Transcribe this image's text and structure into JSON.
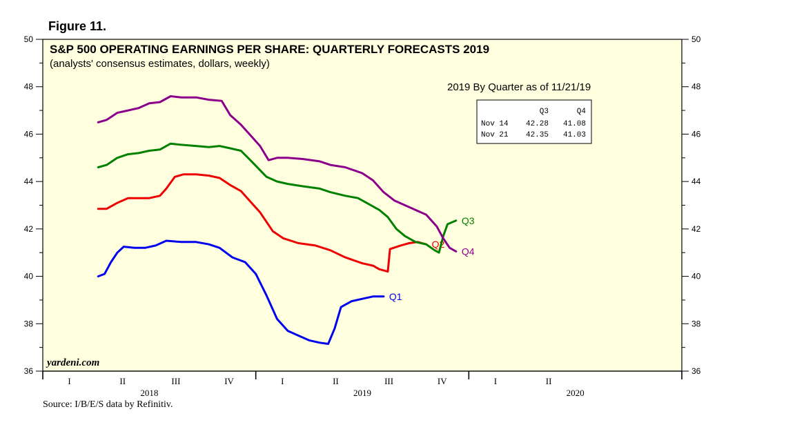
{
  "main": {
    "figure_label": "Figure 11.",
    "title": "S&P 500 OPERATING EARNINGS PER SHARE: QUARTERLY FORECASTS 2019",
    "subtitle": "(analysts' consensus estimates, dollars, weekly)",
    "inset_title": "2019 By Quarter as of 11/21/19",
    "watermark": "yardeni.com",
    "source": "Source: I/B/E/S data by Refinitiv.",
    "table": {
      "headers": [
        "",
        "Q3",
        "Q4"
      ],
      "rows": [
        {
          "label": "Nov 14",
          "q3": "42.28",
          "q4": "41.08"
        },
        {
          "label": "Nov 21",
          "q3": "42.35",
          "q4": "41.03"
        }
      ]
    },
    "colors": {
      "plot_background": "#ffffe0",
      "q1": "#0000ee",
      "q2": "#ee0000",
      "q3": "#008000",
      "q4": "#8b008b"
    }
  },
  "chart_data": {
    "type": "line",
    "title": "S&P 500 OPERATING EARNINGS PER SHARE: QUARTERLY FORECASTS 2019",
    "subtitle": "(analysts' consensus estimates, dollars, weekly)",
    "xlabel": "",
    "ylabel": "",
    "x_unit": "years (decimal)",
    "xlim": [
      2018.0,
      2021.0
    ],
    "ylim": [
      36,
      50
    ],
    "y_ticks": [
      36,
      38,
      40,
      42,
      44,
      46,
      48,
      50
    ],
    "x_quarter_labels": [
      {
        "x": 2018.125,
        "label": "I"
      },
      {
        "x": 2018.375,
        "label": "II"
      },
      {
        "x": 2018.625,
        "label": "III"
      },
      {
        "x": 2018.875,
        "label": "IV"
      },
      {
        "x": 2019.125,
        "label": "I"
      },
      {
        "x": 2019.375,
        "label": "II"
      },
      {
        "x": 2019.625,
        "label": "III"
      },
      {
        "x": 2019.875,
        "label": "IV"
      },
      {
        "x": 2020.125,
        "label": "I"
      },
      {
        "x": 2020.375,
        "label": "II"
      }
    ],
    "x_year_labels": [
      {
        "x": 2018.5,
        "label": "2018"
      },
      {
        "x": 2019.5,
        "label": "2019"
      },
      {
        "x": 2020.5,
        "label": "2020"
      }
    ],
    "series": [
      {
        "name": "Q1",
        "color": "#0000ee",
        "points": [
          [
            2018.26,
            40.0
          ],
          [
            2018.29,
            40.1
          ],
          [
            2018.32,
            40.6
          ],
          [
            2018.35,
            41.0
          ],
          [
            2018.38,
            41.25
          ],
          [
            2018.43,
            41.2
          ],
          [
            2018.48,
            41.2
          ],
          [
            2018.53,
            41.3
          ],
          [
            2018.58,
            41.5
          ],
          [
            2018.65,
            41.45
          ],
          [
            2018.72,
            41.45
          ],
          [
            2018.78,
            41.35
          ],
          [
            2018.83,
            41.2
          ],
          [
            2018.89,
            40.8
          ],
          [
            2018.95,
            40.6
          ],
          [
            2019.0,
            40.1
          ],
          [
            2019.05,
            39.2
          ],
          [
            2019.1,
            38.2
          ],
          [
            2019.15,
            37.7
          ],
          [
            2019.2,
            37.5
          ],
          [
            2019.25,
            37.3
          ],
          [
            2019.3,
            37.2
          ],
          [
            2019.34,
            37.15
          ],
          [
            2019.37,
            37.8
          ],
          [
            2019.4,
            38.7
          ],
          [
            2019.45,
            38.95
          ],
          [
            2019.5,
            39.05
          ],
          [
            2019.55,
            39.15
          ],
          [
            2019.6,
            39.15
          ]
        ]
      },
      {
        "name": "Q2",
        "color": "#ee0000",
        "points": [
          [
            2018.26,
            42.85
          ],
          [
            2018.3,
            42.85
          ],
          [
            2018.35,
            43.1
          ],
          [
            2018.4,
            43.3
          ],
          [
            2018.45,
            43.3
          ],
          [
            2018.5,
            43.3
          ],
          [
            2018.55,
            43.4
          ],
          [
            2018.58,
            43.7
          ],
          [
            2018.62,
            44.2
          ],
          [
            2018.66,
            44.3
          ],
          [
            2018.72,
            44.3
          ],
          [
            2018.78,
            44.25
          ],
          [
            2018.83,
            44.15
          ],
          [
            2018.88,
            43.85
          ],
          [
            2018.93,
            43.6
          ],
          [
            2018.98,
            43.1
          ],
          [
            2019.02,
            42.7
          ],
          [
            2019.08,
            41.9
          ],
          [
            2019.13,
            41.6
          ],
          [
            2019.2,
            41.4
          ],
          [
            2019.28,
            41.3
          ],
          [
            2019.35,
            41.1
          ],
          [
            2019.42,
            40.8
          ],
          [
            2019.5,
            40.55
          ],
          [
            2019.55,
            40.45
          ],
          [
            2019.58,
            40.3
          ],
          [
            2019.62,
            40.2
          ],
          [
            2019.63,
            41.15
          ],
          [
            2019.68,
            41.3
          ],
          [
            2019.72,
            41.4
          ],
          [
            2019.76,
            41.45
          ],
          [
            2019.8,
            41.35
          ]
        ]
      },
      {
        "name": "Q3",
        "color": "#008000",
        "points": [
          [
            2018.26,
            44.6
          ],
          [
            2018.3,
            44.7
          ],
          [
            2018.35,
            45.0
          ],
          [
            2018.4,
            45.15
          ],
          [
            2018.45,
            45.2
          ],
          [
            2018.5,
            45.3
          ],
          [
            2018.55,
            45.35
          ],
          [
            2018.6,
            45.6
          ],
          [
            2018.65,
            45.55
          ],
          [
            2018.72,
            45.5
          ],
          [
            2018.78,
            45.45
          ],
          [
            2018.83,
            45.5
          ],
          [
            2018.88,
            45.4
          ],
          [
            2018.93,
            45.3
          ],
          [
            2018.98,
            44.85
          ],
          [
            2019.05,
            44.2
          ],
          [
            2019.1,
            44.0
          ],
          [
            2019.15,
            43.9
          ],
          [
            2019.22,
            43.8
          ],
          [
            2019.3,
            43.7
          ],
          [
            2019.35,
            43.55
          ],
          [
            2019.42,
            43.4
          ],
          [
            2019.48,
            43.3
          ],
          [
            2019.52,
            43.1
          ],
          [
            2019.58,
            42.8
          ],
          [
            2019.62,
            42.5
          ],
          [
            2019.66,
            42.0
          ],
          [
            2019.7,
            41.7
          ],
          [
            2019.75,
            41.45
          ],
          [
            2019.8,
            41.35
          ],
          [
            2019.84,
            41.1
          ],
          [
            2019.86,
            41.0
          ],
          [
            2019.88,
            41.7
          ],
          [
            2019.9,
            42.2
          ],
          [
            2019.94,
            42.35
          ]
        ]
      },
      {
        "name": "Q4",
        "color": "#8b008b",
        "points": [
          [
            2018.26,
            46.5
          ],
          [
            2018.3,
            46.6
          ],
          [
            2018.35,
            46.9
          ],
          [
            2018.4,
            47.0
          ],
          [
            2018.45,
            47.1
          ],
          [
            2018.5,
            47.3
          ],
          [
            2018.55,
            47.35
          ],
          [
            2018.6,
            47.6
          ],
          [
            2018.65,
            47.55
          ],
          [
            2018.72,
            47.55
          ],
          [
            2018.78,
            47.45
          ],
          [
            2018.84,
            47.4
          ],
          [
            2018.88,
            46.8
          ],
          [
            2018.93,
            46.4
          ],
          [
            2018.98,
            45.9
          ],
          [
            2019.02,
            45.5
          ],
          [
            2019.06,
            44.9
          ],
          [
            2019.1,
            45.0
          ],
          [
            2019.15,
            45.0
          ],
          [
            2019.22,
            44.95
          ],
          [
            2019.3,
            44.85
          ],
          [
            2019.35,
            44.7
          ],
          [
            2019.42,
            44.6
          ],
          [
            2019.5,
            44.35
          ],
          [
            2019.55,
            44.05
          ],
          [
            2019.6,
            43.55
          ],
          [
            2019.65,
            43.2
          ],
          [
            2019.7,
            43.0
          ],
          [
            2019.75,
            42.8
          ],
          [
            2019.8,
            42.6
          ],
          [
            2019.85,
            42.1
          ],
          [
            2019.88,
            41.6
          ],
          [
            2019.91,
            41.2
          ],
          [
            2019.94,
            41.05
          ]
        ]
      }
    ]
  }
}
